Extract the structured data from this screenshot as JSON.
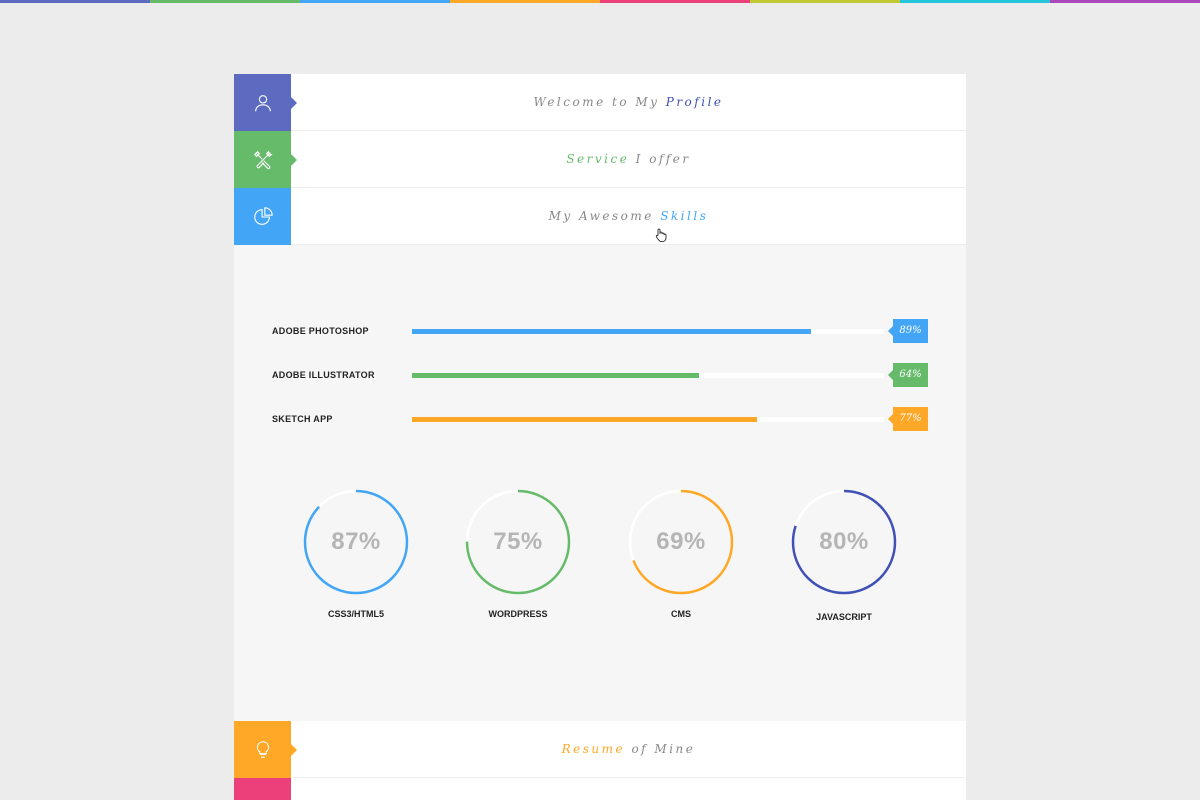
{
  "top_strip_colors": [
    "#5c6bc0",
    "#66bb6a",
    "#42a5f5",
    "#ffa726",
    "#ec407a",
    "#c0ca33",
    "#26c6da",
    "#ab47bc"
  ],
  "sections": [
    {
      "icon": "user-icon",
      "color": "#5c6bc0",
      "title_pre": "Welcome to My ",
      "title_hl": "Profile",
      "title_post": ""
    },
    {
      "icon": "tools-icon",
      "color": "#66bb6a",
      "title_pre": "",
      "title_hl": "Service",
      "title_post": " I offer"
    },
    {
      "icon": "pie-chart-icon",
      "color": "#42a5f5",
      "title_pre": "My Awesome ",
      "title_hl": "Skills",
      "title_post": ""
    },
    {
      "icon": "lightbulb-icon",
      "color": "#ffa726",
      "title_pre": "",
      "title_hl": "Resume",
      "title_post": " of Mine"
    },
    {
      "icon": "heart-icon",
      "color": "#ec407a",
      "title_pre": "",
      "title_hl": "",
      "title_post": ""
    }
  ],
  "skill_bars": [
    {
      "label": "ADOBE PHOTOSHOP",
      "value": 89,
      "badge": "89%",
      "color": "#42a5f5"
    },
    {
      "label": "ADOBE ILLUSTRATOR",
      "value": 64,
      "badge": "64%",
      "color": "#66bb6a"
    },
    {
      "label": "SKETCH APP",
      "value": 77,
      "badge": "77%",
      "color": "#ffa726"
    }
  ],
  "skill_rings": [
    {
      "label": "CSS3/HTML5",
      "value": 87,
      "text": "87%",
      "color": "#42a5f5"
    },
    {
      "label": "WORDPRESS",
      "value": 75,
      "text": "75%",
      "color": "#66bb6a"
    },
    {
      "label": "CMS",
      "value": 69,
      "text": "69%",
      "color": "#ffa726"
    },
    {
      "label": "JAVASCRIPT",
      "value": 80,
      "text": "80%",
      "color": "#3f51b5"
    }
  ]
}
